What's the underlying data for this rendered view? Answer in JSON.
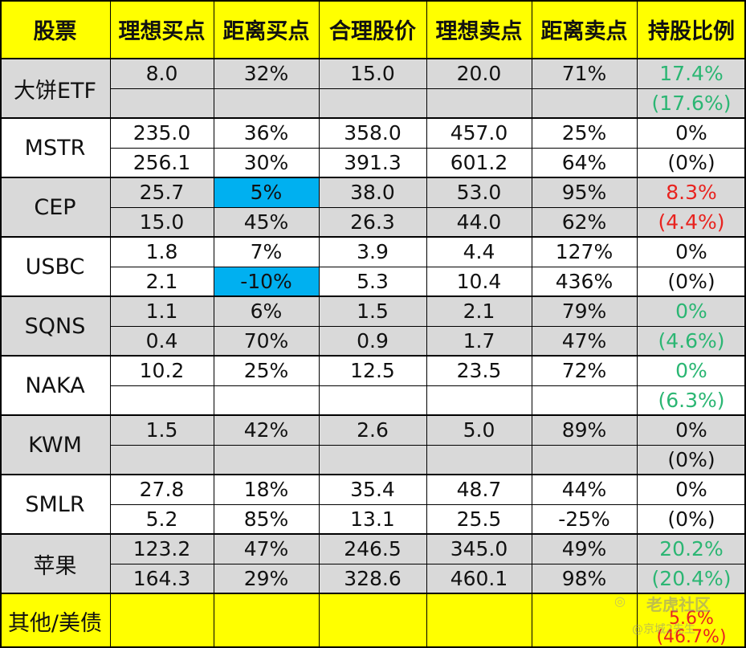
{
  "header": [
    "股票",
    "理想买点",
    "距离买点",
    "合理股价",
    "理想卖点",
    "距离卖点",
    "持股比例"
  ],
  "stocks": [
    {
      "name": "大饼ETF",
      "rows": [
        [
          "8.0",
          "32%",
          "15.0",
          "20.0",
          "71%",
          "17.4%"
        ],
        [
          "",
          "",
          "",
          "",
          "",
          "(17.6%)"
        ]
      ],
      "holding_color": "green"
    },
    {
      "name": "MSTR",
      "rows": [
        [
          "235.0",
          "36%",
          "358.0",
          "457.0",
          "25%",
          "0%"
        ],
        [
          "256.1",
          "30%",
          "391.3",
          "601.2",
          "64%",
          "(0%)"
        ]
      ],
      "holding_color": "black"
    },
    {
      "name": "CEP",
      "rows": [
        [
          "25.7",
          "5%",
          "38.0",
          "53.0",
          "95%",
          "8.3%"
        ],
        [
          "15.0",
          "45%",
          "26.3",
          "44.0",
          "62%",
          "(4.4%)"
        ]
      ],
      "holding_color": "red",
      "highlight": [
        0
      ]
    },
    {
      "name": "USBC",
      "rows": [
        [
          "1.8",
          "7%",
          "3.9",
          "4.4",
          "127%",
          "0%"
        ],
        [
          "2.1",
          "-10%",
          "5.3",
          "10.4",
          "436%",
          "(0%)"
        ]
      ],
      "holding_color": "black",
      "highlight": [
        1
      ]
    },
    {
      "name": "SQNS",
      "rows": [
        [
          "1.1",
          "6%",
          "1.5",
          "2.1",
          "79%",
          "0%"
        ],
        [
          "0.4",
          "70%",
          "0.9",
          "1.7",
          "47%",
          "(4.6%)"
        ]
      ],
      "holding_color": "green"
    },
    {
      "name": "NAKA",
      "rows": [
        [
          "10.2",
          "25%",
          "12.5",
          "23.5",
          "72%",
          "0%"
        ],
        [
          "",
          "",
          "",
          "",
          "",
          "(6.3%)"
        ]
      ],
      "holding_color": "green"
    },
    {
      "name": "KWM",
      "rows": [
        [
          "1.5",
          "42%",
          "2.6",
          "5.0",
          "89%",
          "0%"
        ],
        [
          "",
          "",
          "",
          "",
          "",
          "(0%)"
        ]
      ],
      "holding_color": "black"
    },
    {
      "name": "SMLR",
      "rows": [
        [
          "27.8",
          "18%",
          "35.4",
          "48.7",
          "44%",
          "0%"
        ],
        [
          "5.2",
          "85%",
          "13.1",
          "25.5",
          "-25%",
          "(0%)"
        ]
      ],
      "holding_color": "black"
    },
    {
      "name": "苹果",
      "rows": [
        [
          "123.2",
          "47%",
          "246.5",
          "345.0",
          "49%",
          "20.2%"
        ],
        [
          "164.3",
          "29%",
          "328.6",
          "460.1",
          "98%",
          "(20.4%)"
        ]
      ],
      "holding_color": "green"
    }
  ],
  "footer": {
    "name": "其他/美债",
    "holding": [
      "5.6%",
      "(46.7%)"
    ]
  },
  "colors": {
    "header_bg": "#ffff00",
    "gray_bg": "#d9d9d9",
    "highlight_bg": "#00b0f0",
    "green": "#2bb673",
    "red": "#e8231f"
  },
  "watermark": {
    "logo": "◎",
    "main": "老虎社区",
    "sub": "@京城2先生"
  }
}
